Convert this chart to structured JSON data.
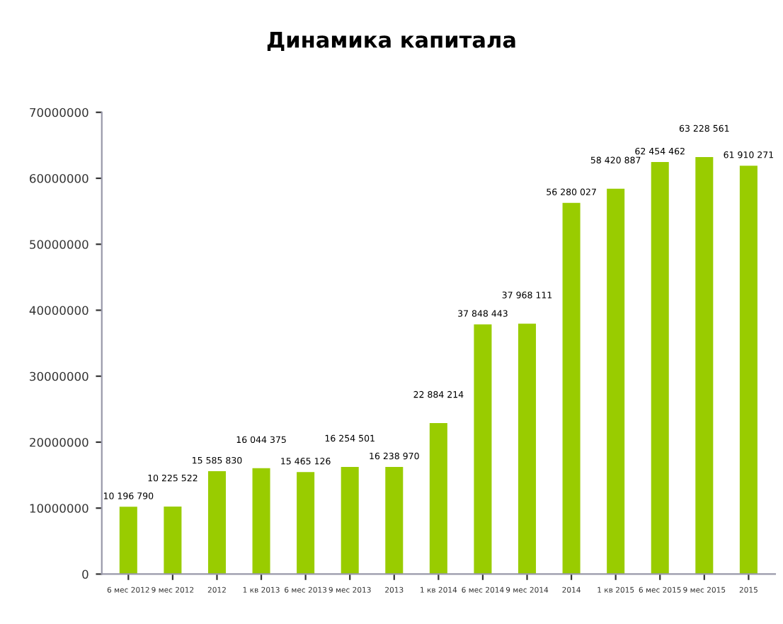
{
  "chart_data": {
    "type": "bar",
    "title": "Динамика капитала",
    "categories": [
      "6 мес 2012",
      "9 мес 2012",
      "2012",
      "1 кв 2013",
      "6 мес 2013",
      "9 мес 2013",
      "2013",
      "1 кв 2014",
      "6 мес 2014",
      "9 мес 2014",
      "2014",
      "1 кв 2015",
      "6 мес 2015",
      "9 мес 2015",
      "2015"
    ],
    "values": [
      10196790,
      10225522,
      15585830,
      16044375,
      15465126,
      16254501,
      16238970,
      22884214,
      37848443,
      37968111,
      56280027,
      58420887,
      62454462,
      63228561,
      61910271
    ],
    "value_labels": [
      "10 196 790",
      "10 225 522",
      "15 585 830",
      "16 044 375",
      "15 465 126",
      "16 254 501",
      "16 238 970",
      "22 884 214",
      "37 848 443",
      "37 968 111",
      "56 280 027",
      "58 420 887",
      "62 454 462",
      "63 228 561",
      "61 910 271"
    ],
    "color": "#99cc00",
    "ylim": [
      0,
      70000000
    ],
    "yticks": [
      0,
      10000000,
      20000000,
      30000000,
      40000000,
      50000000,
      60000000,
      70000000
    ],
    "grid": false
  }
}
